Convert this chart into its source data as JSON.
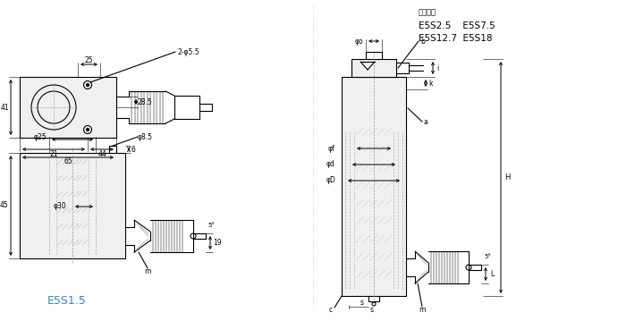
{
  "bg_color": "#ffffff",
  "line_color": "#000000",
  "blue_color": "#3388bb",
  "title_text": "适用机型",
  "model_line1": "E5S2.5    E5S7.5",
  "model_line2": "E5S12.7  E5S18",
  "label_e5s15": "E5S1.5"
}
